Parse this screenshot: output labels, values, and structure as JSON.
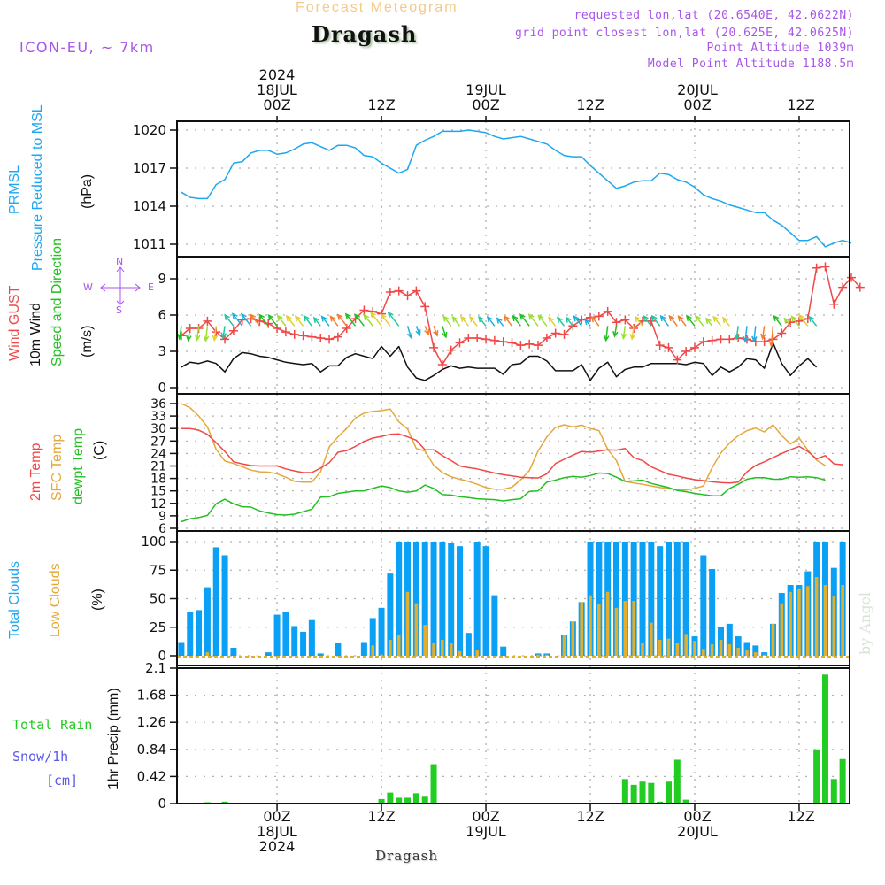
{
  "header": {
    "title": "Forecast Meteogram",
    "station": "Dragash",
    "model": "ICON-EU, ~ 7km",
    "requested": "requested lon,lat (20.6540E, 42.0622N)",
    "grid_point": "grid point closest lon,lat (20.625E, 42.0625N)",
    "point_altitude": "Point Altitude 1039m",
    "model_altitude": "Model Point Altitude 1188.5m"
  },
  "time_axis": {
    "top_ticks": [
      {
        "lines": [
          "2024",
          "18JUL",
          "00Z"
        ],
        "hour": 0
      },
      {
        "lines": [
          "12Z"
        ],
        "hour": 12
      },
      {
        "lines": [
          "19JUL",
          "00Z"
        ],
        "hour": 24
      },
      {
        "lines": [
          "12Z"
        ],
        "hour": 36
      },
      {
        "lines": [
          "20JUL",
          "00Z"
        ],
        "hour": 48
      },
      {
        "lines": [
          "12Z"
        ],
        "hour": 60
      }
    ],
    "bottom_ticks": [
      {
        "lines": [
          "00Z",
          "18JUL",
          "2024"
        ],
        "hour": 0
      },
      {
        "lines": [
          "12Z"
        ],
        "hour": 12
      },
      {
        "lines": [
          "00Z",
          "19JUL"
        ],
        "hour": 24
      },
      {
        "lines": [
          "12Z"
        ],
        "hour": 36
      },
      {
        "lines": [
          "00Z",
          "20JUL"
        ],
        "hour": 48
      },
      {
        "lines": [
          "12Z"
        ],
        "hour": 60
      }
    ],
    "range_hours": [
      -11.5,
      65.8
    ],
    "start_hour": -11
  },
  "panel_labels": {
    "pressure": {
      "l1": "PRMSL",
      "l2": "Pressure Reduced to MSL",
      "unit": "(hPa)"
    },
    "wind": {
      "l1": "Wind GUST",
      "l2": "10m Wind",
      "l3": "Speed and Direction",
      "unit": "(m/s)",
      "compass": {
        "n": "N",
        "s": "S",
        "e": "E",
        "w": "W"
      }
    },
    "temp": {
      "l1": "2m Temp",
      "l2": "SFC Temp",
      "l3": "dewpt Temp",
      "unit": "(C)"
    },
    "clouds": {
      "l1": "Total Clouds",
      "l2": "Low Clouds",
      "unit": "(%)"
    },
    "precip": {
      "l1": "Total   Rain",
      "l2": "Snow/1h",
      "l3": "[cm]",
      "unit": "1hr Precip (mm)"
    }
  },
  "footer": {
    "station": "Dragash",
    "credit": "by Angel"
  },
  "colors": {
    "pressure": "#1ea7f0",
    "gust": "#f04848",
    "wind": "#111111",
    "t2m": "#f04848",
    "sfc": "#e5a83a",
    "dewpt": "#22c022",
    "total_clouds": "#0aa0f5",
    "low_clouds": "#e3ae2c",
    "rain": "#22cc22",
    "label_purple": "#a855e8"
  },
  "chart_data": [
    {
      "type": "line",
      "title": "PRMSL Pressure Reduced to MSL",
      "ylabel": "(hPa)",
      "ylim": [
        1009.7,
        1020.7
      ],
      "yticks": [
        1020,
        1017,
        1014,
        1011
      ],
      "series": [
        {
          "name": "PRMSL",
          "values": [
            1015.1,
            1014.7,
            1014.6,
            1014.6,
            1015.7,
            1016.1,
            1017.4,
            1017.5,
            1018.2,
            1018.4,
            1018.4,
            1018.1,
            1018.2,
            1018.5,
            1018.9,
            1019.0,
            1018.7,
            1018.4,
            1018.8,
            1018.8,
            1018.6,
            1018.0,
            1017.9,
            1017.4,
            1017.0,
            1016.6,
            1016.9,
            1018.8,
            1019.2,
            1019.5,
            1019.9,
            1019.9,
            1019.9,
            1020.0,
            1019.9,
            1019.8,
            1019.5,
            1019.3,
            1019.4,
            1019.5,
            1019.3,
            1019.1,
            1018.9,
            1018.4,
            1018.0,
            1017.9,
            1017.9,
            1017.2,
            1016.6,
            1016.0,
            1015.4,
            1015.6,
            1015.9,
            1016.0,
            1016.0,
            1016.6,
            1016.5,
            1016.1,
            1015.9,
            1015.5,
            1014.9,
            1014.6,
            1014.4,
            1014.1,
            1013.9,
            1013.7,
            1013.5,
            1013.5,
            1012.9,
            1012.5,
            1011.9,
            1011.3,
            1011.3,
            1011.6,
            1010.8,
            1011.1,
            1011.3,
            1011.1
          ]
        }
      ]
    },
    {
      "type": "line",
      "title": "Wind GUST / 10m Wind Speed and Direction",
      "ylabel": "(m/s)",
      "ylim": [
        -0.4,
        10.8
      ],
      "yticks": [
        0,
        3,
        6,
        9
      ],
      "series": [
        {
          "name": "Wind GUST",
          "values": [
            4.3,
            4.9,
            4.9,
            5.5,
            4.6,
            4.0,
            4.7,
            5.6,
            5.7,
            5.5,
            5.3,
            4.9,
            4.6,
            4.4,
            4.3,
            4.2,
            4.1,
            4.0,
            4.2,
            4.9,
            5.7,
            6.4,
            6.3,
            6.1,
            7.9,
            8.0,
            7.6,
            8.0,
            6.7,
            3.3,
            1.9,
            3.1,
            3.7,
            4.1,
            4.1,
            4.0,
            3.9,
            3.8,
            3.7,
            3.5,
            3.6,
            3.5,
            4.1,
            4.5,
            4.4,
            5.1,
            5.6,
            5.8,
            5.9,
            6.3,
            5.4,
            5.6,
            4.9,
            5.5,
            5.5,
            3.5,
            3.3,
            2.3,
            3.0,
            3.3,
            3.8,
            3.9,
            4.0,
            4.0,
            4.1,
            4.0,
            3.8,
            3.8,
            4.0,
            4.5,
            5.4,
            5.5,
            5.7,
            9.9,
            10.0,
            6.9,
            8.3,
            9.1,
            8.3
          ]
        },
        {
          "name": "10m Wind",
          "values": [
            1.7,
            2.1,
            2.0,
            2.2,
            2.0,
            1.3,
            2.4,
            2.9,
            2.8,
            2.6,
            2.5,
            2.3,
            2.1,
            2.0,
            1.9,
            2.0,
            1.3,
            1.8,
            1.8,
            2.5,
            2.8,
            2.6,
            2.4,
            3.4,
            2.6,
            3.4,
            1.7,
            0.8,
            0.6,
            1.0,
            1.5,
            1.8,
            1.6,
            1.7,
            1.6,
            1.6,
            1.6,
            1.1,
            1.9,
            2.0,
            2.6,
            2.6,
            2.2,
            1.4,
            1.4,
            1.4,
            1.9,
            0.6,
            1.6,
            2.1,
            0.9,
            1.5,
            1.7,
            1.7,
            2.0,
            2.0,
            2.0,
            2.0,
            1.9,
            2.1,
            2.0,
            1.0,
            1.7,
            1.3,
            1.7,
            2.4,
            2.3,
            1.6,
            3.7,
            2.0,
            1.0,
            1.8,
            2.4,
            1.7
          ]
        }
      ],
      "wind_arrows_note": "colored direction arrows along ~5 m/s band"
    },
    {
      "type": "line",
      "title": "2m Temp / SFC Temp / dewpt Temp",
      "ylabel": "(C)",
      "ylim": [
        5.6,
        37.2
      ],
      "yticks": [
        36,
        33,
        30,
        27,
        24,
        21,
        18,
        15,
        12,
        9,
        6
      ],
      "series": [
        {
          "name": "2m Temp",
          "values": [
            30.0,
            30.0,
            29.6,
            28.6,
            26.6,
            24.5,
            22.0,
            21.5,
            21.1,
            21.0,
            21.0,
            21.0,
            20.3,
            19.8,
            19.4,
            19.4,
            20.5,
            21.8,
            24.3,
            24.7,
            25.7,
            26.9,
            27.7,
            28.1,
            28.6,
            28.7,
            28.0,
            27.2,
            24.9,
            24.9,
            23.5,
            22.3,
            21.0,
            20.6,
            20.3,
            19.8,
            19.3,
            18.9,
            18.6,
            18.3,
            18.2,
            18.1,
            19.1,
            21.6,
            22.6,
            23.6,
            24.5,
            24.3,
            24.6,
            24.9,
            24.8,
            25.2,
            23.0,
            22.3,
            20.8,
            19.9,
            19.0,
            18.6,
            18.1,
            17.7,
            17.5,
            17.2,
            17.0,
            16.9,
            17.1,
            19.6,
            21.1,
            22.0,
            23.0,
            24.0,
            24.9,
            25.7,
            24.5,
            22.7,
            23.5,
            21.5,
            21.3
          ]
        },
        {
          "name": "SFC Temp",
          "values": [
            36.0,
            35.0,
            33.0,
            30.4,
            25.0,
            22.2,
            21.6,
            20.8,
            20.0,
            19.6,
            19.5,
            19.1,
            18.3,
            17.3,
            17.1,
            17.1,
            19.6,
            25.6,
            28.0,
            30.0,
            32.5,
            33.7,
            34.1,
            34.3,
            34.7,
            31.6,
            29.9,
            25.2,
            24.6,
            21.2,
            19.4,
            18.4,
            17.8,
            17.3,
            16.6,
            15.8,
            15.4,
            15.4,
            15.9,
            17.7,
            19.9,
            24.6,
            28.0,
            30.3,
            30.9,
            30.4,
            30.8,
            30.0,
            29.5,
            25.0,
            22.3,
            17.3,
            16.9,
            16.6,
            16.2,
            15.8,
            15.6,
            15.3,
            15.2,
            15.6,
            16.2,
            20.6,
            24.1,
            26.5,
            28.3,
            29.5,
            30.1,
            29.2,
            30.9,
            28.3,
            26.3,
            27.7,
            24.8,
            22.4,
            21.1
          ]
        },
        {
          "name": "dewpt Temp",
          "values": [
            7.6,
            8.3,
            8.6,
            9.1,
            11.9,
            13.0,
            11.9,
            11.2,
            11.1,
            10.2,
            9.7,
            9.3,
            9.2,
            9.4,
            10.0,
            10.6,
            13.5,
            13.6,
            14.4,
            14.7,
            15.0,
            15.0,
            15.6,
            16.2,
            15.8,
            15.0,
            14.7,
            15.0,
            16.4,
            15.6,
            14.1,
            14.0,
            13.6,
            13.4,
            13.1,
            13.0,
            12.9,
            12.6,
            12.9,
            13.1,
            14.9,
            15.0,
            17.1,
            17.6,
            18.2,
            18.5,
            18.3,
            18.7,
            19.3,
            19.2,
            18.3,
            17.3,
            17.4,
            17.6,
            16.8,
            16.3,
            15.8,
            15.1,
            14.8,
            14.4,
            14.1,
            13.8,
            13.8,
            15.6,
            16.6,
            17.8,
            18.2,
            18.2,
            17.8,
            17.8,
            18.4,
            18.3,
            18.4,
            18.2,
            17.6
          ]
        }
      ]
    },
    {
      "type": "bar",
      "title": "Total Clouds / Low Clouds",
      "ylabel": "(%)",
      "ylim": [
        -3,
        110
      ],
      "yticks": [
        100,
        75,
        50,
        25,
        0
      ],
      "series": [
        {
          "name": "Total Clouds",
          "values": [
            12,
            38,
            40,
            60,
            95,
            88,
            7,
            0,
            0,
            0,
            3,
            36,
            38,
            26,
            21,
            32,
            2,
            0,
            11,
            0,
            0,
            12,
            33,
            42,
            72,
            100,
            100,
            100,
            100,
            100,
            100,
            99,
            96,
            20,
            100,
            96,
            53,
            8,
            0,
            0,
            0,
            2,
            2,
            0,
            18,
            30,
            47,
            100,
            100,
            100,
            100,
            100,
            100,
            100,
            100,
            96,
            100,
            100,
            100,
            17,
            88,
            76,
            25,
            28,
            17,
            12,
            9,
            3,
            28,
            55,
            62,
            62,
            74,
            100,
            100,
            77,
            100,
            85,
            98
          ]
        },
        {
          "name": "Low Clouds",
          "values": [
            0,
            0,
            0,
            3,
            0,
            0,
            0,
            0,
            0,
            0,
            0,
            0,
            0,
            0,
            0,
            0,
            0,
            0,
            0,
            0,
            0,
            0,
            9,
            1,
            14,
            18,
            56,
            46,
            27,
            11,
            14,
            11,
            4,
            0,
            5,
            0,
            0,
            0,
            0,
            0,
            0,
            1,
            1,
            0,
            18,
            30,
            47,
            53,
            45,
            56,
            42,
            48,
            48,
            11,
            29,
            14,
            15,
            11,
            19,
            13,
            6,
            10,
            14,
            10,
            7,
            5,
            3,
            1,
            28,
            46,
            56,
            59,
            61,
            69,
            62,
            52,
            62,
            68,
            46
          ]
        }
      ]
    },
    {
      "type": "bar",
      "title": "1hr Precip",
      "ylabel": "1hr Precip (mm)",
      "ylim": [
        0,
        2.1
      ],
      "yticks": [
        0,
        0.42,
        0.84,
        1.26,
        1.68,
        2.1
      ],
      "series": [
        {
          "name": "Total Rain",
          "values": [
            0,
            0,
            0,
            0.02,
            0.01,
            0.03,
            0,
            0,
            0,
            0,
            0,
            0,
            0,
            0,
            0,
            0,
            0,
            0,
            0,
            0,
            0,
            0,
            0,
            0.07,
            0.17,
            0.09,
            0.09,
            0.16,
            0.12,
            0.61,
            0,
            0,
            0,
            0,
            0,
            0,
            0,
            0,
            0,
            0,
            0,
            0,
            0,
            0,
            0,
            0,
            0,
            0,
            0,
            0,
            0,
            0.38,
            0.29,
            0.34,
            0.32,
            0.03,
            0.34,
            0.68,
            0.06,
            0,
            0,
            0,
            0,
            0,
            0,
            0,
            0,
            0,
            0,
            0,
            0,
            0,
            0.01,
            0.84,
            2.0,
            0.38,
            0.69,
            0.81,
            0.48
          ]
        },
        {
          "name": "Snow/1h",
          "values": []
        }
      ]
    }
  ]
}
